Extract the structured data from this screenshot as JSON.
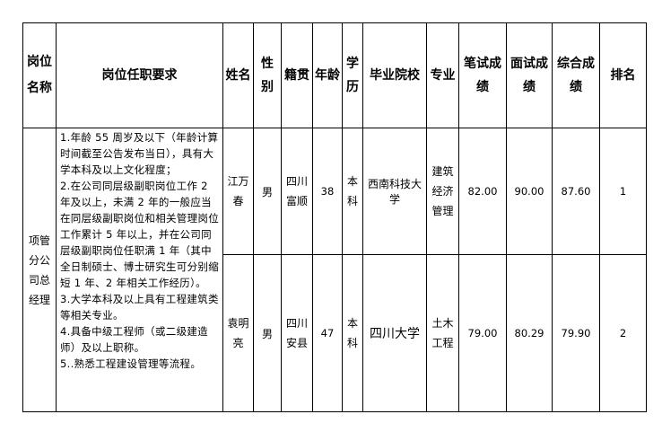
{
  "headers": [
    "岗位名称",
    "岗位任职要求",
    "姓名",
    "性别",
    "籍贯",
    "年龄",
    "学历",
    "毕业院校",
    "专业",
    "笔试成绩",
    "面试成绩",
    "综合成绩",
    "排名"
  ],
  "position": "项管分公司总经理",
  "requirements": "1.年龄 55 周岁及以下（年龄计算时间截至公告发布当日），具有大学本科及以上文化程度；\n2.在公司同层级副职岗位工作 2 年及以上，未满 2 年的一般应当在同层级副职岗位和相关管理岗位工作累计 5 年以上，并在公司同层级副职岗位任职满 1 年（其中全日制硕士、博士研究生可分别缩短 1 年、2 年相关工作经历）。\n3.大学本科及以上具有工程建筑类等相关专业。\n4.具备中级工程师（或二级建造师）及以上职称。\n5..熟悉工程建设管理等流程。",
  "rows": [
    {
      "name": "江万春",
      "gender": "男",
      "origin": "四川富顺",
      "age": "38",
      "education": "本科",
      "school": "西南科技大学",
      "major": "建筑经济管理",
      "written": "82.00",
      "interview": "90.00",
      "total": "87.60",
      "rank": "1"
    },
    {
      "name": "袁明亮",
      "gender": "男",
      "origin": "四川安县",
      "age": "47",
      "education": "本科",
      "school": "四川大学",
      "major": "土木工程",
      "written": "79.00",
      "interview": "80.29",
      "total": "79.90",
      "rank": "2"
    }
  ]
}
